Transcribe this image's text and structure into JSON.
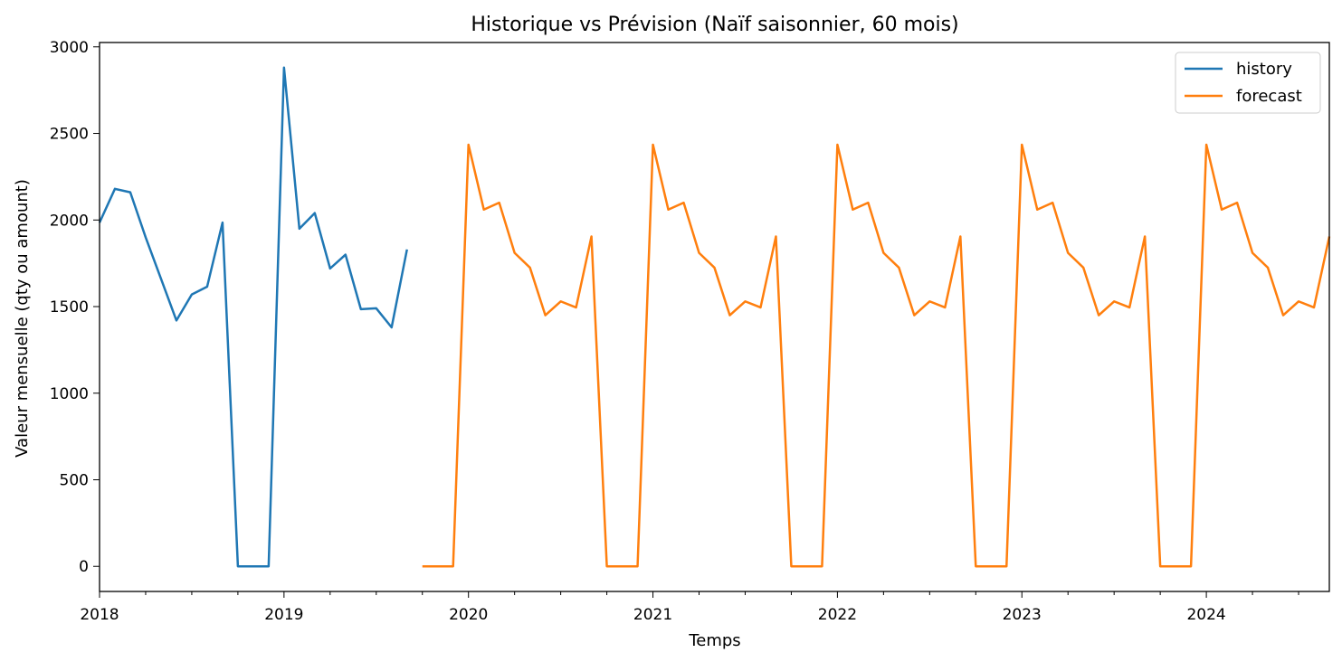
{
  "chart_data": {
    "type": "line",
    "title": "Historique vs Prévision (Naïf saisonnier, 60 mois)",
    "xlabel": "Temps",
    "ylabel": "Valeur mensuelle (qty ou amount)",
    "xlim": [
      "2018-01",
      "2024-09"
    ],
    "ylim": [
      -145,
      3025
    ],
    "x_ticks": [
      "2018",
      "2019",
      "2020",
      "2021",
      "2022",
      "2023",
      "2024"
    ],
    "y_ticks": [
      0,
      500,
      1000,
      1500,
      2000,
      2500,
      3000
    ],
    "grid": false,
    "legend_position": "top-right",
    "series": [
      {
        "name": "history",
        "color": "#1f77b4",
        "x": [
          "2018-01",
          "2018-02",
          "2018-03",
          "2018-04",
          "2018-05",
          "2018-06",
          "2018-07",
          "2018-08",
          "2018-09",
          "2018-10",
          "2018-11",
          "2018-12",
          "2019-01",
          "2019-02",
          "2019-03",
          "2019-04",
          "2019-05",
          "2019-06",
          "2019-07",
          "2019-08",
          "2019-09"
        ],
        "values": [
          1985,
          2180,
          2160,
          1900,
          1660,
          1420,
          1570,
          1615,
          1985,
          0,
          0,
          0,
          2880,
          1950,
          2040,
          1720,
          1800,
          1485,
          1490,
          1380,
          1830
        ]
      },
      {
        "name": "forecast",
        "color": "#ff7f0e",
        "x": [
          "2019-10",
          "2019-11",
          "2019-12",
          "2020-01",
          "2020-02",
          "2020-03",
          "2020-04",
          "2020-05",
          "2020-06",
          "2020-07",
          "2020-08",
          "2020-09",
          "2020-10",
          "2020-11",
          "2020-12",
          "2021-01",
          "2021-02",
          "2021-03",
          "2021-04",
          "2021-05",
          "2021-06",
          "2021-07",
          "2021-08",
          "2021-09",
          "2021-10",
          "2021-11",
          "2021-12",
          "2022-01",
          "2022-02",
          "2022-03",
          "2022-04",
          "2022-05",
          "2022-06",
          "2022-07",
          "2022-08",
          "2022-09",
          "2022-10",
          "2022-11",
          "2022-12",
          "2023-01",
          "2023-02",
          "2023-03",
          "2023-04",
          "2023-05",
          "2023-06",
          "2023-07",
          "2023-08",
          "2023-09",
          "2023-10",
          "2023-11",
          "2023-12",
          "2024-01",
          "2024-02",
          "2024-03",
          "2024-04",
          "2024-05",
          "2024-06",
          "2024-07",
          "2024-08",
          "2024-09"
        ],
        "values": [
          0,
          0,
          0,
          2435,
          2060,
          2100,
          1810,
          1725,
          1450,
          1530,
          1495,
          1905,
          0,
          0,
          0,
          2435,
          2060,
          2100,
          1810,
          1725,
          1450,
          1530,
          1495,
          1905,
          0,
          0,
          0,
          2435,
          2060,
          2100,
          1810,
          1725,
          1450,
          1530,
          1495,
          1905,
          0,
          0,
          0,
          2435,
          2060,
          2100,
          1810,
          1725,
          1450,
          1530,
          1495,
          1905,
          0,
          0,
          0,
          2435,
          2060,
          2100,
          1810,
          1725,
          1450,
          1530,
          1495,
          1905
        ]
      }
    ]
  }
}
